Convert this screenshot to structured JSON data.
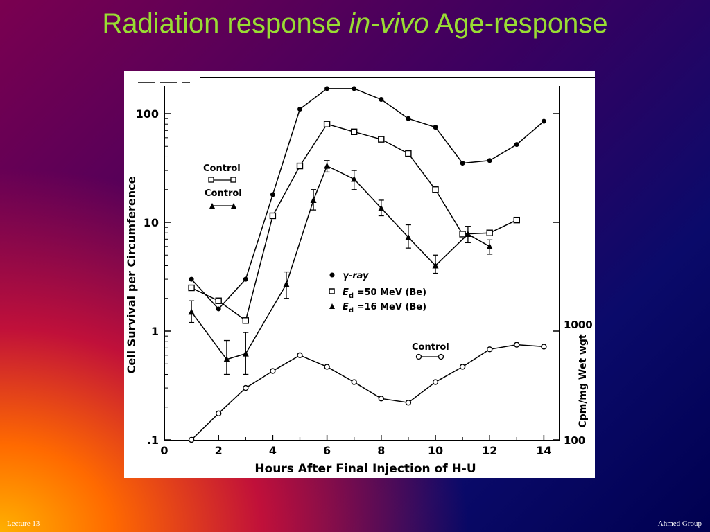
{
  "slide": {
    "title_part1": "Radiation response",
    "title_italic": "in-vivo",
    "title_part2": "Age-response",
    "footer_left": "Lecture 13",
    "footer_right": "Ahmed Group"
  },
  "chart_data": {
    "type": "line",
    "title": "",
    "xlabel": "Hours  After  Final  Injection  of  H-U",
    "ylabel": "Cell  Survival  per  Circumference",
    "ylabel_right": "Cpm/mg  Wet  wgt",
    "xlim": [
      0,
      14.5
    ],
    "ylim": [
      0.1,
      200
    ],
    "yscale": "log",
    "x_ticks": [
      "0",
      "2",
      "4",
      "6",
      "8",
      "10",
      "12",
      "14"
    ],
    "y_ticks": [
      "100",
      "10",
      "1",
      ".1"
    ],
    "y_right_ticks": [
      "1000",
      "100"
    ],
    "grid": false,
    "legend": {
      "position": "center",
      "entries": [
        {
          "symbol": "filled-circle",
          "label": "γ-ray",
          "label_prefix": "γ",
          "label_rest": "-ray"
        },
        {
          "symbol": "open-square",
          "label": "Ed =50 MeV (Be)",
          "label_E": "E",
          "label_sub": "d",
          "label_rest": " =50 MeV (Be)"
        },
        {
          "symbol": "filled-triangle",
          "label": "Ed =16 MeV (Be)",
          "label_E": "E",
          "label_sub": "d",
          "label_rest": " =16 MeV (Be)"
        }
      ]
    },
    "annotations": {
      "control_1": "Control",
      "control_2": "Control",
      "control_3": "Control"
    },
    "series": [
      {
        "name": "γ-ray",
        "marker": "filled-circle",
        "x": [
          1,
          2,
          3,
          4,
          5,
          6,
          7,
          8,
          9,
          10,
          11,
          12,
          13,
          14
        ],
        "y": [
          3.0,
          1.6,
          3.0,
          18,
          110,
          170,
          170,
          135,
          90,
          75,
          35,
          37,
          52,
          85
        ]
      },
      {
        "name": "Ed =50 MeV (Be)",
        "marker": "open-square",
        "x": [
          1,
          2,
          3,
          4,
          5,
          6,
          7,
          8,
          9,
          10,
          11,
          12,
          13
        ],
        "y": [
          2.5,
          1.9,
          1.25,
          11.5,
          33,
          80,
          68,
          58,
          43,
          20,
          7.8,
          8.0,
          10.5
        ]
      },
      {
        "name": "Ed =16 MeV (Be)",
        "marker": "filled-triangle",
        "x": [
          1,
          2.3,
          3,
          4.5,
          5.5,
          6,
          7,
          8,
          9,
          10,
          11.2,
          12
        ],
        "y": [
          1.5,
          0.55,
          0.62,
          2.7,
          16,
          33,
          25,
          13.5,
          7.3,
          4.0,
          7.8,
          6.0
        ],
        "error_low": [
          1.2,
          0.4,
          0.4,
          2.0,
          13,
          29,
          20,
          11.5,
          5.8,
          3.4,
          6.5,
          5.1
        ],
        "error_high": [
          1.9,
          0.82,
          0.97,
          3.5,
          20,
          37,
          30,
          16,
          9.5,
          5.0,
          9.2,
          6.9
        ]
      },
      {
        "name": "Control",
        "marker": "open-circle",
        "axis": "right",
        "x": [
          1,
          2,
          3,
          4,
          5,
          6,
          7,
          8,
          9,
          10,
          11,
          12,
          13,
          14
        ],
        "y": [
          0.1,
          0.175,
          0.3,
          0.43,
          0.6,
          0.47,
          0.34,
          0.24,
          0.22,
          0.34,
          0.47,
          0.68,
          0.75,
          0.72
        ]
      }
    ]
  }
}
